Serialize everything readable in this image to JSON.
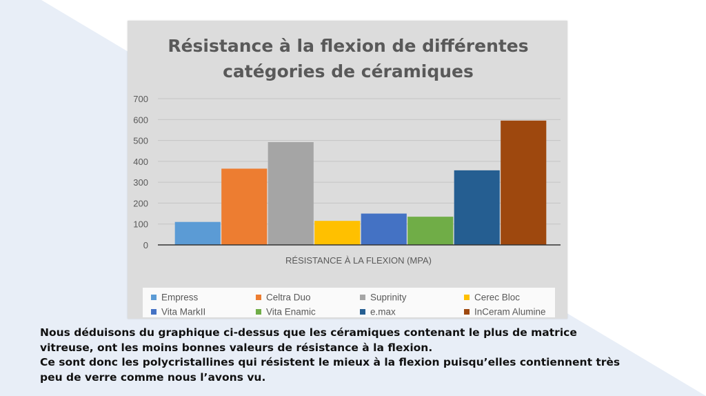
{
  "chart_data": {
    "type": "bar",
    "title_line1": "Résistance à la flexion de différentes",
    "title_line2": "catégories de céramiques",
    "xlabel": "RÉSISTANCE À LA FLEXION (MPA)",
    "ylabel": "",
    "ylim": [
      0,
      700
    ],
    "yticks": [
      "0",
      "100",
      "200",
      "300",
      "400",
      "500",
      "600",
      "700"
    ],
    "grid": true,
    "legend_position": "bottom",
    "series": [
      {
        "name": "Empress",
        "value": 110,
        "color": "#5b9bd5"
      },
      {
        "name": "Celtra Duo",
        "value": 365,
        "color": "#ed7d31"
      },
      {
        "name": "Suprinity",
        "value": 492,
        "color": "#a5a5a5"
      },
      {
        "name": "Cerec Bloc",
        "value": 115,
        "color": "#ffc000"
      },
      {
        "name": "Vita MarkII",
        "value": 150,
        "color": "#4472c4"
      },
      {
        "name": "Vita Enamic",
        "value": 135,
        "color": "#70ad47"
      },
      {
        "name": "e.max",
        "value": 357,
        "color": "#255e91"
      },
      {
        "name": "InCeram Alumine",
        "value": 595,
        "color": "#9e480e"
      }
    ]
  },
  "caption": {
    "line1": "Nous déduisons du graphique ci-dessus que les céramiques contenant le plus de matrice",
    "line2": "vitreuse, ont les moins bonnes valeurs de résistance à la flexion.",
    "line3": "Ce sont donc les polycristallines qui résistent le mieux à la flexion puisqu’elles contiennent très",
    "line4": "peu de verre comme nous l’avons vu."
  },
  "colors": {
    "slide_bg": "#ffffff",
    "slide_accent": "#e8eef7",
    "chart_bg": "#dcdcdc",
    "title": "#595959",
    "axis_text": "#595959",
    "gridline": "#c4c4c4"
  }
}
